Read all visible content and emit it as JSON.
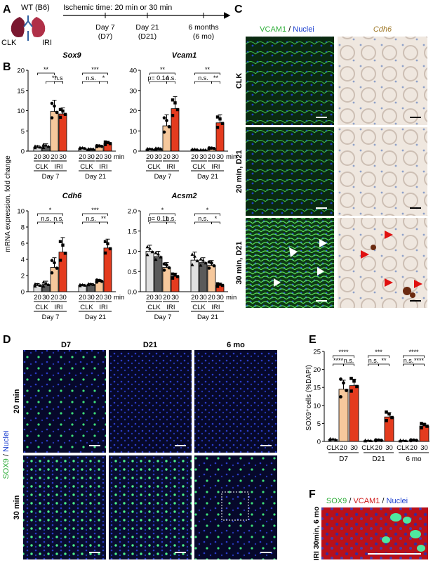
{
  "panels": {
    "A": "A",
    "B": "B",
    "C": "C",
    "D": "D",
    "E": "E",
    "F": "F"
  },
  "panelA": {
    "strain": "WT (B6)",
    "clk": "CLK",
    "iri": "IRI",
    "ischemic": "Ischemic time: 20 min or 30 min",
    "timepoints": [
      {
        "line1": "Day 7",
        "line2": "(D7)"
      },
      {
        "line1": "Day 21",
        "line2": "(D21)"
      },
      {
        "line1": "6 months",
        "line2": "(6 mo)"
      }
    ]
  },
  "panelB": {
    "ylabel": "mRNA expression, fold change",
    "colors": {
      "clk20": "#e0e0e0",
      "clk30": "#5a5a5a",
      "iri20": "#f6c89c",
      "iri30": "#e43b1e"
    },
    "xaxis": {
      "t20": "20",
      "t30": "30",
      "unit": "min",
      "clk": "CLK",
      "iri": "IRI",
      "day7": "Day 7",
      "day21": "Day 21"
    },
    "charts": [
      {
        "title": "Sox9",
        "ylim": [
          0,
          20
        ],
        "ticks": [
          "0",
          "5",
          "10",
          "15",
          "20"
        ],
        "groups": [
          {
            "means": [
              1.0,
              1.2,
              9.8,
              9.2
            ],
            "errs": [
              0.3,
              0.6,
              2.8,
              1.5
            ]
          },
          {
            "means": [
              0.7,
              0.5,
              1.2,
              1.9
            ],
            "errs": [
              0.2,
              0.1,
              0.2,
              0.5
            ]
          }
        ],
        "sig": [
          [
            {
              "label": "**",
              "from": 0,
              "to": 2,
              "level": 1
            },
            {
              "label": "**",
              "from": 1,
              "to": 3,
              "level": 0
            },
            {
              "label": "n.s",
              "from": 2,
              "to": 3,
              "level": 0
            }
          ],
          [
            {
              "label": "***",
              "from": 0,
              "to": 3,
              "level": 1
            },
            {
              "label": "n.s.",
              "from": 0,
              "to": 2,
              "level": 0
            },
            {
              "label": "*",
              "from": 2,
              "to": 3,
              "level": 0
            }
          ]
        ]
      },
      {
        "title": "Vcam1",
        "ylim": [
          0,
          40
        ],
        "ticks": [
          "0",
          "10",
          "20",
          "30",
          "40"
        ],
        "groups": [
          {
            "means": [
              1.0,
              1.2,
              12.5,
              21.0
            ],
            "errs": [
              0.3,
              0.4,
              5.5,
              6.0
            ]
          },
          {
            "means": [
              0.8,
              0.6,
              1.3,
              14.0
            ],
            "errs": [
              0.2,
              0.1,
              0.4,
              4.0
            ]
          }
        ],
        "sig": [
          [
            {
              "label": "**",
              "from": 0,
              "to": 3,
              "level": 1
            },
            {
              "label": "p= 0.14",
              "from": 0,
              "to": 2,
              "level": 0
            },
            {
              "label": "n.s.",
              "from": 2,
              "to": 3,
              "level": 0
            }
          ],
          [
            {
              "label": "**",
              "from": 0,
              "to": 3,
              "level": 1
            },
            {
              "label": "n.s.",
              "from": 0,
              "to": 2,
              "level": 0
            },
            {
              "label": "**",
              "from": 2,
              "to": 3,
              "level": 0
            }
          ]
        ]
      },
      {
        "title": "Cdh6",
        "ylim": [
          0,
          10
        ],
        "ticks": [
          "0",
          "2",
          "4",
          "6",
          "8",
          "10"
        ],
        "groups": [
          {
            "means": [
              0.8,
              0.9,
              3.0,
              4.9
            ],
            "errs": [
              0.2,
              0.4,
              1.2,
              1.8
            ]
          },
          {
            "means": [
              0.8,
              0.9,
              1.3,
              5.4
            ],
            "errs": [
              0.1,
              0.1,
              0.2,
              1.1
            ]
          }
        ],
        "sig": [
          [
            {
              "label": "*",
              "from": 0,
              "to": 3,
              "level": 1
            },
            {
              "label": "n.s.",
              "from": 0,
              "to": 2,
              "level": 0
            },
            {
              "label": "n.s.",
              "from": 2,
              "to": 3,
              "level": 0
            }
          ],
          [
            {
              "label": "***",
              "from": 0,
              "to": 3,
              "level": 1
            },
            {
              "label": "n.s.",
              "from": 0,
              "to": 2,
              "level": 0
            },
            {
              "label": "**",
              "from": 2,
              "to": 3,
              "level": 0
            }
          ]
        ]
      },
      {
        "title": "Acsm2",
        "ylim": [
          0,
          2.0
        ],
        "ticks": [
          "0.0",
          "0.5",
          "1.0",
          "1.5",
          "2.0"
        ],
        "groups": [
          {
            "means": [
              1.0,
              0.87,
              0.6,
              0.38
            ],
            "errs": [
              0.15,
              0.13,
              0.12,
              0.08
            ]
          },
          {
            "means": [
              0.78,
              0.72,
              0.65,
              0.16
            ],
            "errs": [
              0.2,
              0.12,
              0.12,
              0.05
            ]
          }
        ],
        "sig": [
          [
            {
              "label": "*",
              "from": 0,
              "to": 3,
              "level": 1
            },
            {
              "label": "p= 0.11",
              "from": 0,
              "to": 2,
              "level": 0
            },
            {
              "label": "n.s.",
              "from": 2,
              "to": 3,
              "level": 0
            }
          ],
          [
            {
              "label": "*",
              "from": 0,
              "to": 3,
              "level": 1
            },
            {
              "label": "n.s.",
              "from": 0,
              "to": 2,
              "level": 0
            },
            {
              "label": "*",
              "from": 2,
              "to": 3,
              "level": 0
            }
          ]
        ]
      }
    ]
  },
  "panelC": {
    "vcam": "VCAM1",
    "slash": " / ",
    "nuclei": "Nuclei",
    "cdh6": "Cdh6",
    "rows": [
      "CLK",
      "20 min, D21",
      "30 min, D21"
    ]
  },
  "panelD": {
    "cols": [
      "D7",
      "D21",
      "6 mo"
    ],
    "rows": [
      "20 min",
      "30 min"
    ],
    "sox9": "SOX9",
    "slash": " / ",
    "nuclei": "Nuclei"
  },
  "panelE": {
    "ylabel": "SOX9⁺cells (%DAPI)",
    "ylim": [
      0,
      25
    ],
    "ticks": [
      "0",
      "5",
      "10",
      "15",
      "20",
      "25"
    ],
    "groups": [
      {
        "label": "D7",
        "means": [
          0.5,
          14.5,
          15.5
        ],
        "errs": [
          0.2,
          2.5,
          1.8
        ]
      },
      {
        "label": "D21",
        "means": [
          0.2,
          0.3,
          6.8
        ],
        "errs": [
          0.1,
          0.1,
          1.2
        ]
      },
      {
        "label": "6 mo",
        "means": [
          0.2,
          0.3,
          4.3
        ],
        "errs": [
          0.1,
          0.1,
          0.6
        ]
      }
    ],
    "xlabels": {
      "clk": "CLK",
      "t20": "20",
      "t30": "30"
    },
    "sig": [
      [
        {
          "label": "****",
          "from": 0,
          "to": 2,
          "level": 1
        },
        {
          "label": "****",
          "from": 0,
          "to": 1,
          "level": 0
        },
        {
          "label": "n.s.",
          "from": 1,
          "to": 2,
          "level": 0
        }
      ],
      [
        {
          "label": "***",
          "from": 0,
          "to": 2,
          "level": 1
        },
        {
          "label": "n.s.",
          "from": 0,
          "to": 1,
          "level": 0
        },
        {
          "label": "**",
          "from": 1,
          "to": 2,
          "level": 0
        }
      ],
      [
        {
          "label": "****",
          "from": 0,
          "to": 2,
          "level": 1
        },
        {
          "label": "n.s.",
          "from": 0,
          "to": 1,
          "level": 0
        },
        {
          "label": "****",
          "from": 1,
          "to": 2,
          "level": 0
        }
      ]
    ]
  },
  "panelF": {
    "sox9": "SOX9",
    "vcam": "VCAM1",
    "nuclei": "Nuclei",
    "slash": " / ",
    "side": "IRI 30min, 6 mo"
  },
  "chart_data": [
    {
      "type": "bar",
      "title": "Sox9",
      "ylabel": "mRNA expression, fold change",
      "categories": [
        "CLK 20 Day 7",
        "CLK 30 Day 7",
        "IRI 20 Day 7",
        "IRI 30 Day 7",
        "CLK 20 Day 21",
        "CLK 30 Day 21",
        "IRI 20 Day 21",
        "IRI 30 Day 21"
      ],
      "values": [
        1.0,
        1.2,
        9.8,
        9.2,
        0.7,
        0.5,
        1.2,
        1.9
      ],
      "ylim": [
        0,
        20
      ]
    },
    {
      "type": "bar",
      "title": "Vcam1",
      "ylabel": "mRNA expression, fold change",
      "categories": [
        "CLK 20 Day 7",
        "CLK 30 Day 7",
        "IRI 20 Day 7",
        "IRI 30 Day 7",
        "CLK 20 Day 21",
        "CLK 30 Day 21",
        "IRI 20 Day 21",
        "IRI 30 Day 21"
      ],
      "values": [
        1.0,
        1.2,
        12.5,
        21.0,
        0.8,
        0.6,
        1.3,
        14.0
      ],
      "ylim": [
        0,
        40
      ]
    },
    {
      "type": "bar",
      "title": "Cdh6",
      "ylabel": "mRNA expression, fold change",
      "categories": [
        "CLK 20 Day 7",
        "CLK 30 Day 7",
        "IRI 20 Day 7",
        "IRI 30 Day 7",
        "CLK 20 Day 21",
        "CLK 30 Day 21",
        "IRI 20 Day 21",
        "IRI 30 Day 21"
      ],
      "values": [
        0.8,
        0.9,
        3.0,
        4.9,
        0.8,
        0.9,
        1.3,
        5.4
      ],
      "ylim": [
        0,
        10
      ]
    },
    {
      "type": "bar",
      "title": "Acsm2",
      "ylabel": "mRNA expression, fold change",
      "categories": [
        "CLK 20 Day 7",
        "CLK 30 Day 7",
        "IRI 20 Day 7",
        "IRI 30 Day 7",
        "CLK 20 Day 21",
        "CLK 30 Day 21",
        "IRI 20 Day 21",
        "IRI 30 Day 21"
      ],
      "values": [
        1.0,
        0.87,
        0.6,
        0.38,
        0.78,
        0.72,
        0.65,
        0.16
      ],
      "ylim": [
        0,
        2.0
      ]
    },
    {
      "type": "bar",
      "ylabel": "SOX9⁺cells (%DAPI)",
      "categories": [
        "CLK D7",
        "20 D7",
        "30 D7",
        "CLK D21",
        "20 D21",
        "30 D21",
        "CLK 6 mo",
        "20 6 mo",
        "30 6 mo"
      ],
      "values": [
        0.5,
        14.5,
        15.5,
        0.2,
        0.3,
        6.8,
        0.2,
        0.3,
        4.3
      ],
      "ylim": [
        0,
        25
      ]
    }
  ]
}
